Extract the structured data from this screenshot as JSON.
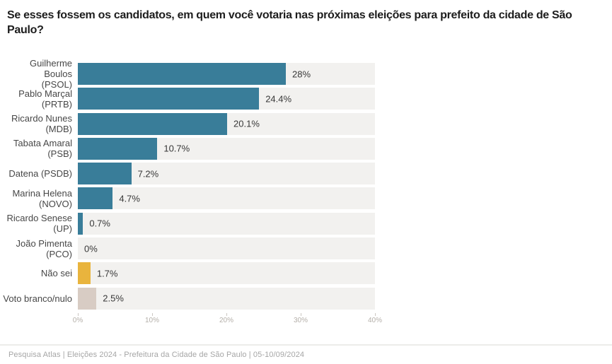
{
  "title": "Se esses fossem os candidatos, em quem você votaria nas próximas eleições para prefeito da cidade de São Paulo?",
  "footer": {
    "text": "Pesquisa Atlas | Eleições 2024 - Prefeitura da Cidade de São Paulo | 05-10/09/2024"
  },
  "colors": {
    "candidate_bar": "#397d99",
    "dont_know_bar": "#e9b43d",
    "blank_null_bar": "#d8ccc4",
    "row_background": "#f2f1ef",
    "title_text": "#1d1d1d",
    "label_text": "#474747",
    "value_text": "#383838",
    "tick_text": "#b4afa9",
    "footer_text": "#a6a6a6"
  },
  "chart_data": {
    "type": "bar",
    "orientation": "horizontal",
    "title": "Se esses fossem os candidatos, em quem você votaria nas próximas eleições para prefeito da cidade de São Paulo?",
    "xlabel": "",
    "ylabel": "",
    "xlim": [
      0,
      40
    ],
    "grid": false,
    "legend": false,
    "x_tick_values": [
      0,
      10,
      20,
      30,
      40
    ],
    "x_tick_labels": [
      "0%",
      "10%",
      "20%",
      "30%",
      "40%"
    ],
    "bars": [
      {
        "category": "Guilherme Boulos (PSOL)",
        "category_lines": [
          "Guilherme Boulos",
          "(PSOL)"
        ],
        "value": 28,
        "value_label": "28%",
        "color": "#397d99"
      },
      {
        "category": "Pablo Marçal (PRTB)",
        "category_lines": [
          "Pablo Marçal (PRTB)"
        ],
        "value": 24.4,
        "value_label": "24.4%",
        "color": "#397d99"
      },
      {
        "category": "Ricardo Nunes (MDB)",
        "category_lines": [
          "Ricardo Nunes",
          "(MDB)"
        ],
        "value": 20.1,
        "value_label": "20.1%",
        "color": "#397d99"
      },
      {
        "category": "Tabata Amaral (PSB)",
        "category_lines": [
          "Tabata Amaral (PSB)"
        ],
        "value": 10.7,
        "value_label": "10.7%",
        "color": "#397d99"
      },
      {
        "category": "Datena (PSDB)",
        "category_lines": [
          "Datena (PSDB)"
        ],
        "value": 7.2,
        "value_label": "7.2%",
        "color": "#397d99"
      },
      {
        "category": "Marina Helena (NOVO)",
        "category_lines": [
          "Marina Helena",
          "(NOVO)"
        ],
        "value": 4.7,
        "value_label": "4.7%",
        "color": "#397d99"
      },
      {
        "category": "Ricardo Senese (UP)",
        "category_lines": [
          "Ricardo Senese (UP)"
        ],
        "value": 0.7,
        "value_label": "0.7%",
        "color": "#397d99"
      },
      {
        "category": "João Pimenta (PCO)",
        "category_lines": [
          "João Pimenta (PCO)"
        ],
        "value": 0,
        "value_label": "0%",
        "color": "#397d99"
      },
      {
        "category": "Não sei",
        "category_lines": [
          "Não sei"
        ],
        "value": 1.7,
        "value_label": "1.7%",
        "color": "#e9b43d"
      },
      {
        "category": "Voto branco/nulo",
        "category_lines": [
          "Voto branco/nulo"
        ],
        "value": 2.5,
        "value_label": "2.5%",
        "color": "#d8ccc4"
      }
    ]
  }
}
